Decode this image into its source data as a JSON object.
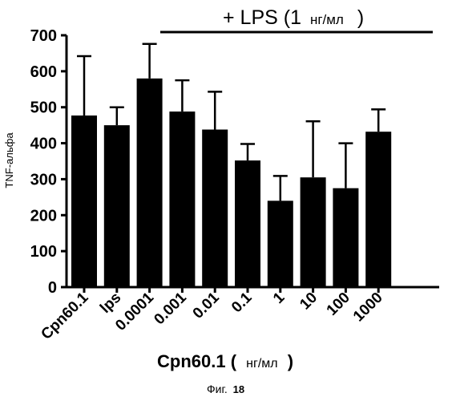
{
  "chart_data": {
    "type": "bar",
    "annotation": {
      "main": "+ LPS (1",
      "unit": "нг/мл",
      "close": ")"
    },
    "ylabel": "TNF-альфа",
    "xlabel": {
      "main": "Cpn60.1 (",
      "unit": "нг/мл",
      "close": ")"
    },
    "caption": {
      "text": "Фиг.",
      "number": "18"
    },
    "ylim": [
      0,
      700
    ],
    "yticks": [
      "0",
      "100",
      "200",
      "300",
      "400",
      "500",
      "600",
      "700"
    ],
    "categories": [
      "Cpn60.1",
      "lps",
      "0.0001",
      "0.001",
      "0.01",
      "0.1",
      "1",
      "10",
      "100",
      "1000"
    ],
    "values": [
      477,
      450,
      580,
      488,
      438,
      352,
      240,
      305,
      275,
      432
    ],
    "error_upper": [
      642,
      500,
      676,
      575,
      543,
      398,
      309,
      461,
      400,
      494
    ],
    "bar_color": "#000000",
    "grid": false
  }
}
